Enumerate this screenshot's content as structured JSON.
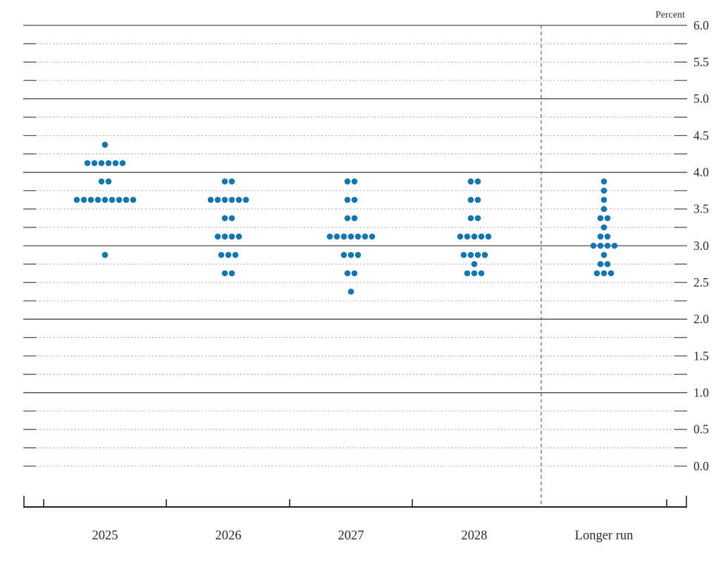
{
  "header": {
    "unit_label": "Percent"
  },
  "chart_data": {
    "type": "scatter",
    "subtype": "fomc-dot-plot",
    "unit_label": "Percent",
    "categories": [
      "2025",
      "2026",
      "2027",
      "2028",
      "Longer run"
    ],
    "series": [
      {
        "name": "2025",
        "dots": [
          {
            "value": 4.375,
            "count": 1
          },
          {
            "value": 4.125,
            "count": 6
          },
          {
            "value": 3.875,
            "count": 2
          },
          {
            "value": 3.625,
            "count": 9
          },
          {
            "value": 2.875,
            "count": 1
          }
        ]
      },
      {
        "name": "2026",
        "dots": [
          {
            "value": 3.875,
            "count": 2
          },
          {
            "value": 3.625,
            "count": 6
          },
          {
            "value": 3.375,
            "count": 2
          },
          {
            "value": 3.125,
            "count": 4
          },
          {
            "value": 2.875,
            "count": 3
          },
          {
            "value": 2.625,
            "count": 2
          }
        ]
      },
      {
        "name": "2027",
        "dots": [
          {
            "value": 3.875,
            "count": 2
          },
          {
            "value": 3.625,
            "count": 2
          },
          {
            "value": 3.375,
            "count": 2
          },
          {
            "value": 3.125,
            "count": 7
          },
          {
            "value": 2.875,
            "count": 3
          },
          {
            "value": 2.625,
            "count": 2
          },
          {
            "value": 2.375,
            "count": 1
          }
        ]
      },
      {
        "name": "2028",
        "dots": [
          {
            "value": 3.875,
            "count": 2
          },
          {
            "value": 3.625,
            "count": 2
          },
          {
            "value": 3.375,
            "count": 2
          },
          {
            "value": 3.125,
            "count": 5
          },
          {
            "value": 2.875,
            "count": 4
          },
          {
            "value": 2.75,
            "count": 1
          },
          {
            "value": 2.625,
            "count": 3
          }
        ]
      },
      {
        "name": "Longer run",
        "dots": [
          {
            "value": 3.875,
            "count": 1
          },
          {
            "value": 3.75,
            "count": 1
          },
          {
            "value": 3.625,
            "count": 1
          },
          {
            "value": 3.5,
            "count": 1
          },
          {
            "value": 3.375,
            "count": 2
          },
          {
            "value": 3.25,
            "count": 1
          },
          {
            "value": 3.125,
            "count": 2
          },
          {
            "value": 3.0,
            "count": 4
          },
          {
            "value": 2.875,
            "count": 1
          },
          {
            "value": 2.75,
            "count": 2
          },
          {
            "value": 2.625,
            "count": 3
          }
        ]
      }
    ],
    "y_axis": {
      "min": 0.0,
      "max": 6.0,
      "label_step": 0.5,
      "tick_labels": [
        "6.0",
        "5.5",
        "5.0",
        "4.5",
        "4.0",
        "3.5",
        "3.0",
        "2.5",
        "2.0",
        "1.5",
        "1.0",
        "0.5",
        "0.0"
      ],
      "solid_lines": [
        6.0,
        5.0,
        4.0,
        3.0,
        2.0,
        1.0
      ],
      "dotted_step": 0.25,
      "grid": true
    },
    "separator_after_category": "2028",
    "legend_position": "none",
    "colors": {
      "dot": "#1377ad",
      "solid_line": "#4a4a4a",
      "dotted_line": "#999999",
      "cap_line": "#555555",
      "dashed_separator": "#6b6b6b",
      "axis": "#222222",
      "text": "#2b2b2b"
    }
  }
}
